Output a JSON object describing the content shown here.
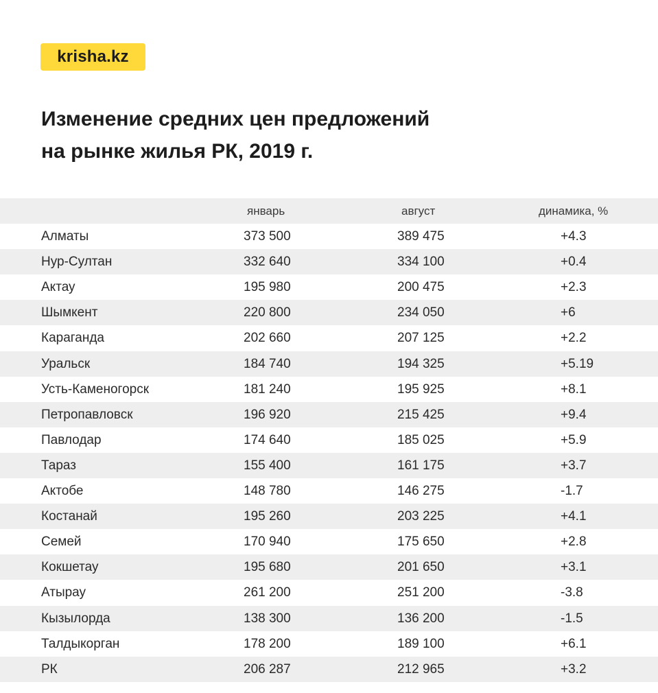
{
  "logo": {
    "text": "krisha.kz",
    "color": "#ffd83a"
  },
  "title": {
    "line1": "Изменение средних цен предложений",
    "line2": "на рынке жилья РК, 2019 г."
  },
  "table": {
    "headers": {
      "city": "",
      "january": "январь",
      "august": "август",
      "dynamics": "динамика, %"
    },
    "rows": [
      {
        "city": "Алматы",
        "january": "373 500",
        "august": "389 475",
        "dynamics": "+4.3"
      },
      {
        "city": "Нур-Султан",
        "january": "332 640",
        "august": "334 100",
        "dynamics": "+0.4"
      },
      {
        "city": "Актау",
        "january": "195 980",
        "august": "200 475",
        "dynamics": "+2.3"
      },
      {
        "city": "Шымкент",
        "january": "220 800",
        "august": "234 050",
        "dynamics": "+6"
      },
      {
        "city": "Караганда",
        "january": "202 660",
        "august": "207 125",
        "dynamics": "+2.2"
      },
      {
        "city": "Уральск",
        "january": "184 740",
        "august": "194 325",
        "dynamics": "+5.19"
      },
      {
        "city": "Усть-Каменогорск",
        "january": "181 240",
        "august": "195 925",
        "dynamics": "+8.1"
      },
      {
        "city": "Петропавловск",
        "january": "196 920",
        "august": "215 425",
        "dynamics": "+9.4"
      },
      {
        "city": "Павлодар",
        "january": "174 640",
        "august": "185 025",
        "dynamics": "+5.9"
      },
      {
        "city": "Тараз",
        "january": "155 400",
        "august": "161 175",
        "dynamics": "+3.7"
      },
      {
        "city": "Актобе",
        "january": "148 780",
        "august": "146 275",
        "dynamics": "-1.7"
      },
      {
        "city": "Костанай",
        "january": "195 260",
        "august": "203 225",
        "dynamics": "+4.1"
      },
      {
        "city": "Семей",
        "january": "170 940",
        "august": "175 650",
        "dynamics": "+2.8"
      },
      {
        "city": "Кокшетау",
        "january": "195 680",
        "august": "201 650",
        "dynamics": "+3.1"
      },
      {
        "city": "Атырау",
        "january": "261 200",
        "august": "251 200",
        "dynamics": "-3.8"
      },
      {
        "city": "Кызылорда",
        "january": "138 300",
        "august": "136 200",
        "dynamics": "-1.5"
      },
      {
        "city": "Талдыкорган",
        "january": "178 200",
        "august": "189 100",
        "dynamics": "+6.1"
      },
      {
        "city": "РК",
        "january": "206 287",
        "august": "212 965",
        "dynamics": "+3.2"
      }
    ]
  }
}
